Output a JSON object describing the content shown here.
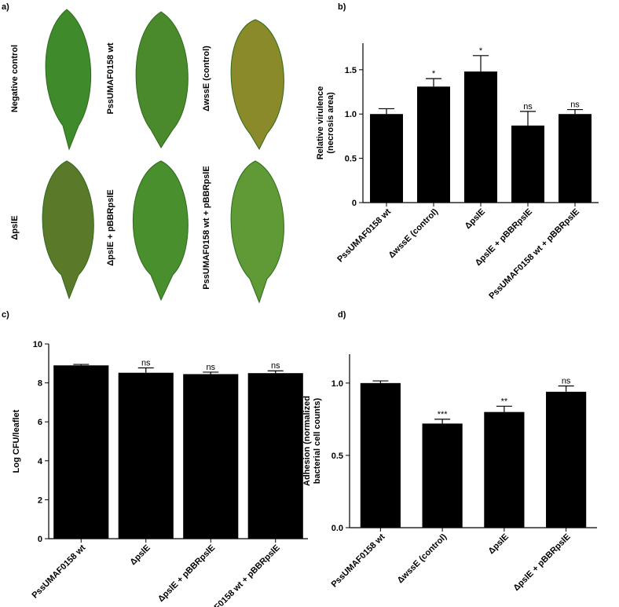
{
  "panel_a": {
    "label": "a)",
    "leaves": [
      "Negative control",
      "PssUMAF0158 wt",
      "ΔwssE (control)",
      "ΔpslE",
      "ΔpslE + pBBRpslE",
      "PssUMAF0158 wt + pBBRpslE"
    ]
  },
  "chart_data": [
    {
      "type": "bar",
      "panel": "b)",
      "ylabel": [
        "Relative virulence",
        "(necrosis area)"
      ],
      "categories": [
        "PssUMAF0158 wt",
        "ΔwssE (control)",
        "ΔpslE",
        "ΔpslE + pBBRpslE",
        "PssUMAF0158 wt + pBBRpslE"
      ],
      "values": [
        1.0,
        1.31,
        1.48,
        0.87,
        1.0
      ],
      "errors": [
        0.06,
        0.09,
        0.18,
        0.16,
        0.05
      ],
      "annotations": [
        null,
        "*",
        "*",
        "ns",
        "ns"
      ],
      "color": "#000000",
      "ylim": [
        0,
        1.8
      ],
      "yticks": [
        0,
        0.5,
        {
          "value": 1,
          "label": "1.0"
        },
        1.5
      ]
    },
    {
      "type": "bar",
      "panel": "c)",
      "ylabel": [
        "Log CFU/leaflet"
      ],
      "categories": [
        "PssUMAF0158 wt",
        "ΔpslE",
        "ΔpslE + pBBRpslE",
        "PssUMAF0158 wt + pBBRpslE"
      ],
      "values": [
        8.9,
        8.52,
        8.45,
        8.5
      ],
      "errors": [
        0.05,
        0.25,
        0.1,
        0.12
      ],
      "annotations": [
        null,
        "ns",
        "ns",
        "ns"
      ],
      "color": "#000000",
      "ylim": [
        0,
        10
      ],
      "yticks": [
        0,
        2,
        4,
        6,
        8,
        10
      ]
    },
    {
      "type": "bar",
      "panel": "d)",
      "ylabel": [
        "Adhesion (normalized",
        "bacterial cell counts)"
      ],
      "categories": [
        "PssUMAF0158 wt",
        "ΔwssE (control)",
        "ΔpslE",
        "ΔpslE + pBBRpslE"
      ],
      "values": [
        1.0,
        0.72,
        0.8,
        0.94
      ],
      "errors": [
        0.015,
        0.03,
        0.04,
        0.04
      ],
      "annotations": [
        null,
        "***",
        "**",
        "ns"
      ],
      "color": "#000000",
      "ylim": [
        0,
        1.2
      ],
      "yticks": [
        {
          "value": 0,
          "label": "0.0"
        },
        0.5,
        {
          "value": 1,
          "label": "1.0"
        }
      ]
    }
  ]
}
